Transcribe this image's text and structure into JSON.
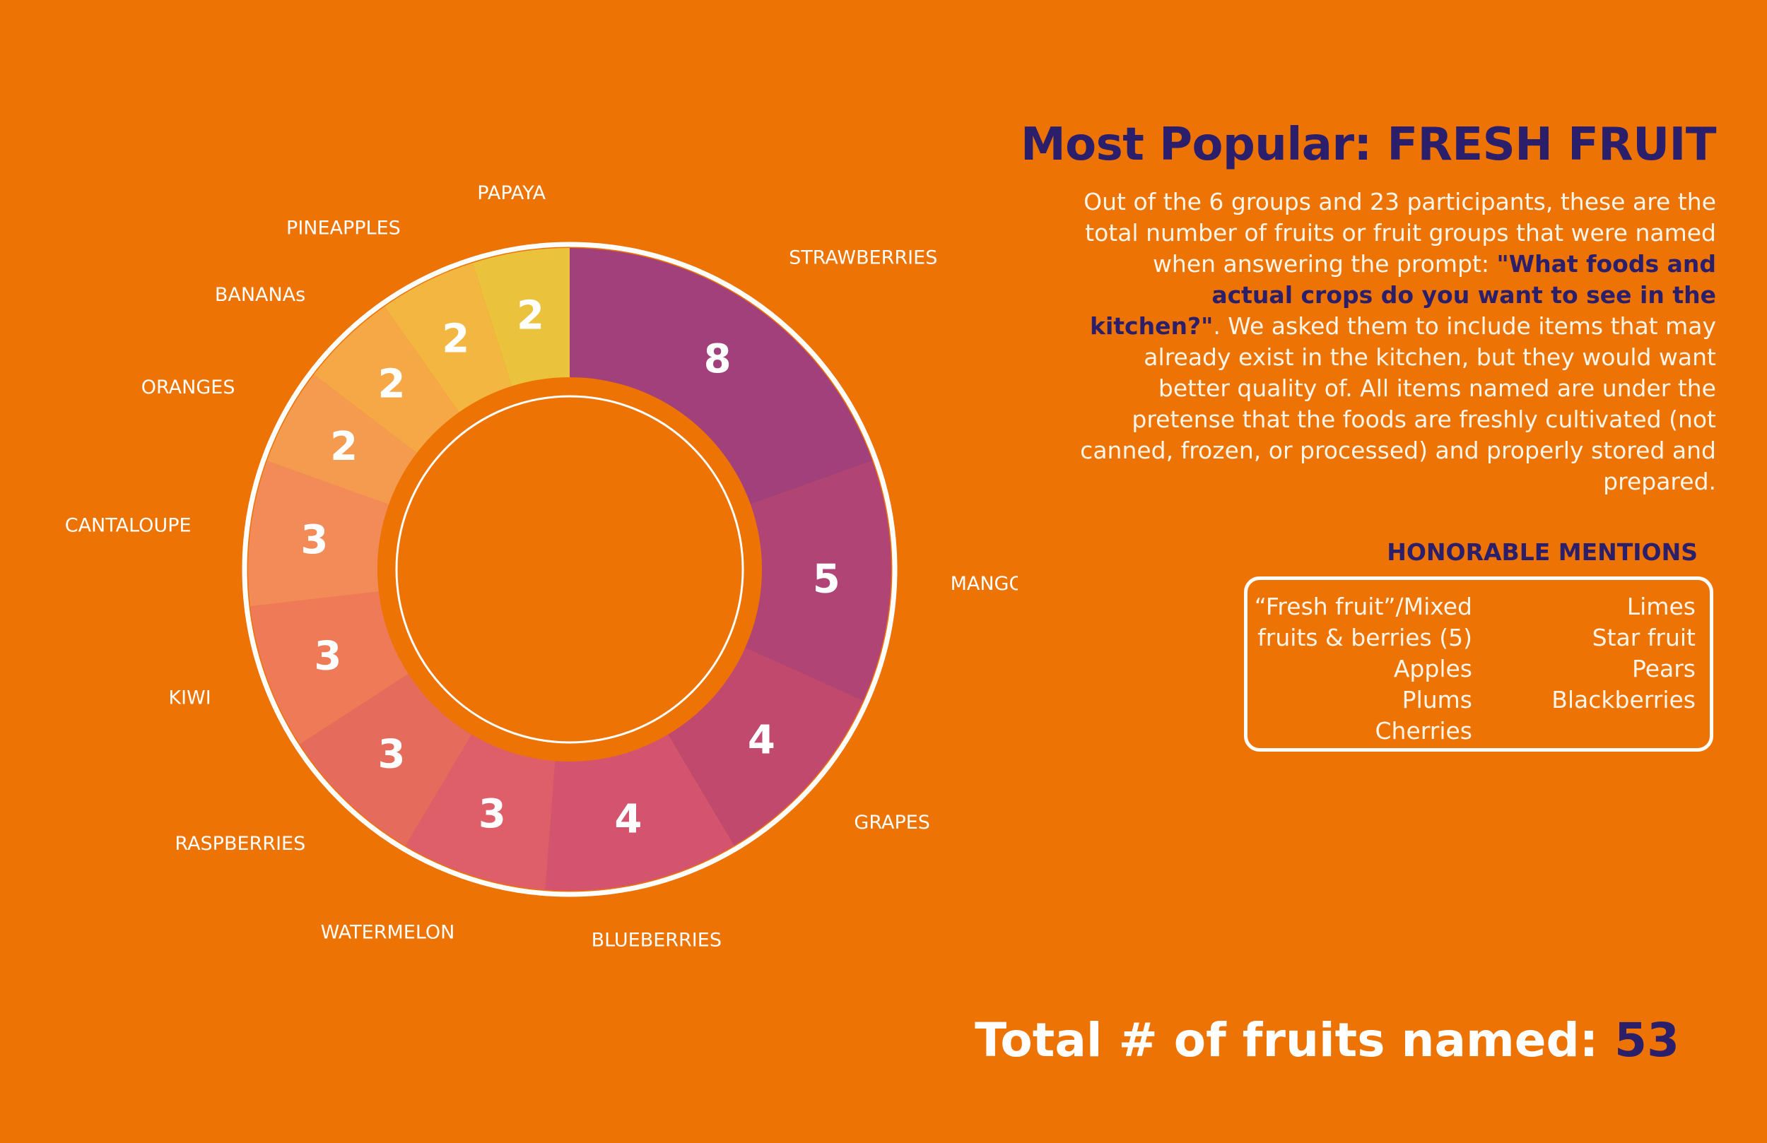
{
  "title": "Most Popular: FRESH FRUIT",
  "description": {
    "before": "Out of the 6 groups and 23 participants, these are the total number of fruits or fruit groups that were named when answering the prompt: ",
    "prompt": "\"What foods and actual crops do you want to see in the kitchen?\"",
    "after": ". We asked them to include items that may already exist in the kitchen, but they would want better quality of. All items named are under the pretense that the foods are freshly cultivated (not canned, frozen, or processed) and properly stored and prepared."
  },
  "honorable_mentions": {
    "heading": "HONORABLE MENTIONS",
    "left": [
      "“Fresh fruit”/Mixed",
      "fruits & berries (5)",
      "Apples",
      "Plums",
      "Cherries"
    ],
    "right": [
      "Limes",
      "Star fruit",
      "Pears",
      "Blackberries"
    ]
  },
  "total": {
    "label": "Total # of fruits named: ",
    "value": "53"
  },
  "chart_data": {
    "type": "pie",
    "style": "donut",
    "categories": [
      "STRAWBERRIES",
      "MANGOS",
      "GRAPES",
      "BLUEBERRIES",
      "WATERMELON",
      "RASPBERRIES",
      "KIWI",
      "CANTALOUPE",
      "ORANGES",
      "BANANAs",
      "PINEAPPLES",
      "PAPAYA"
    ],
    "values": [
      8,
      5,
      4,
      4,
      3,
      3,
      3,
      3,
      2,
      2,
      2,
      2
    ],
    "colors": [
      "#A1407A",
      "#B04474",
      "#C1496E",
      "#D45470",
      "#DE5F6A",
      "#E56B5D",
      "#EE7A58",
      "#F28B58",
      "#F59B4F",
      "#F5A845",
      "#F3B641",
      "#EAC23B"
    ],
    "ring_color": "#FFFFFF",
    "inner_ring_color": "#EC7304"
  }
}
